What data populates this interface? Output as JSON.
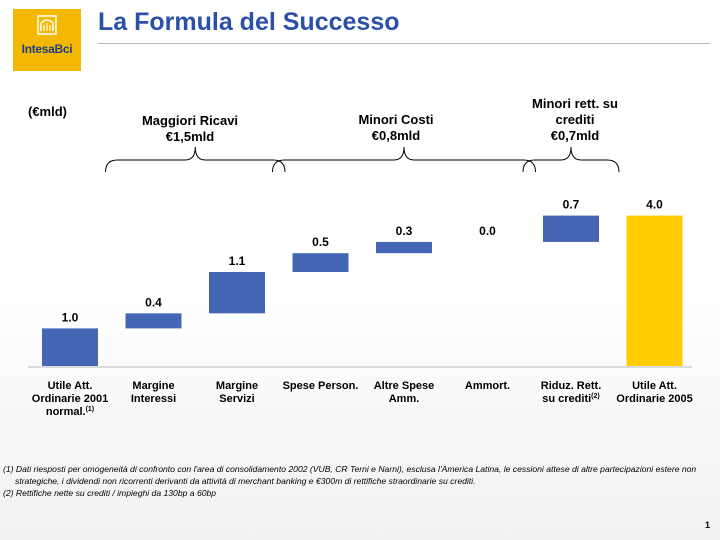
{
  "logo": {
    "text": "IntesaBci"
  },
  "title": "La Formula del Successo",
  "unit_label": "(€mld)",
  "groups": [
    {
      "line1": "Maggiori Ricavi",
      "line2": "€1,5mld"
    },
    {
      "line1": "Minori Costi",
      "line2": "€0,8mld"
    },
    {
      "line1": "Minori rett. su",
      "line2": "crediti",
      "line3": "€0,7mld"
    }
  ],
  "chart_data": {
    "type": "bar",
    "subtype": "waterfall",
    "categories": [
      [
        "Utile Att.",
        "Ordinarie 2001",
        "normal."
      ],
      [
        "Margine",
        "Interessi"
      ],
      [
        "Margine",
        "Servizi"
      ],
      [
        "Spese Person."
      ],
      [
        "Altre Spese",
        "Amm."
      ],
      [
        "Ammort."
      ],
      [
        "Riduz. Rett.",
        "su crediti"
      ],
      [
        "Utile Att.",
        "Ordinarie 2005"
      ]
    ],
    "category_superscripts": [
      "(1)",
      "",
      "",
      "",
      "",
      "",
      "(2)",
      ""
    ],
    "values": [
      1.0,
      0.4,
      1.1,
      0.5,
      0.3,
      0.0,
      0.7,
      4.0
    ],
    "value_labels": [
      "1.0",
      "0.4",
      "1.1",
      "0.5",
      "0.3",
      "0.0",
      "0.7",
      "4.0"
    ],
    "bar_kinds": [
      "total",
      "delta",
      "delta",
      "delta",
      "delta",
      "delta",
      "delta",
      "total"
    ],
    "ylim": [
      0,
      4.0
    ],
    "grid": false,
    "colors": {
      "bar": "#4566b4",
      "total_final": "#ffcc00"
    }
  },
  "footnotes": [
    "(1) Dati riesposti per omogeneità di confronto con l'area di consolidamento 2002 (VUB, CR Terni e Narni), esclusa l'America Latina, le cessioni attese di altre partecipazioni estere non strategiche, i dividendi non ricorrenti derivanti da attività di merchant banking e €300m di rettifiche straordinarie su crediti.",
    "(2) Rettifiche nette su crediti / impieghi da 130bp a 60bp"
  ],
  "page_number": "1"
}
